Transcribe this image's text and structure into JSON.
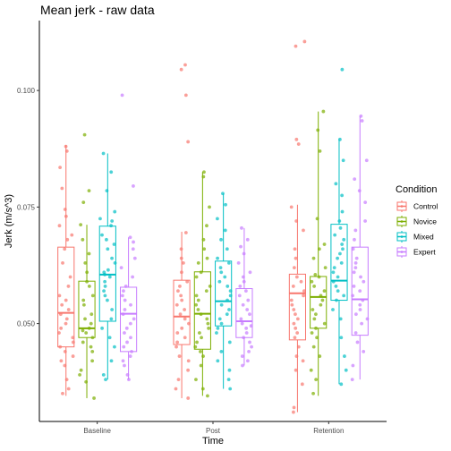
{
  "chart_data": {
    "type": "box",
    "title": "Mean jerk - raw data",
    "xlabel": "Time",
    "ylabel": "Jerk (m/s^3)",
    "categories": [
      "Baseline",
      "Post",
      "Retention"
    ],
    "ylim": [
      0.029,
      0.115
    ],
    "yticks": [
      0.05,
      0.075,
      0.1
    ],
    "ytick_labels": [
      "0.050",
      "0.075",
      "0.100"
    ],
    "legend": {
      "title": "Condition",
      "position": "right"
    },
    "series": [
      {
        "name": "Control",
        "color": "#F8766D",
        "boxes": [
          {
            "lower": 0.0345,
            "q1": 0.045,
            "median": 0.0523,
            "q3": 0.0664,
            "upper": 0.0883,
            "points": [
              0.088,
              0.087,
              0.0835,
              0.079,
              0.0745,
              0.073,
              0.071,
              0.069,
              0.068,
              0.066,
              0.063,
              0.06,
              0.058,
              0.056,
              0.055,
              0.054,
              0.053,
              0.052,
              0.051,
              0.05,
              0.049,
              0.048,
              0.047,
              0.046,
              0.045,
              0.044,
              0.043,
              0.042,
              0.041,
              0.038,
              0.036,
              0.035
            ]
          },
          {
            "lower": 0.034,
            "q1": 0.0455,
            "median": 0.0515,
            "q3": 0.0593,
            "upper": 0.0697,
            "points": [
              0.1055,
              0.1045,
              0.099,
              0.089,
              0.0695,
              0.066,
              0.064,
              0.063,
              0.061,
              0.059,
              0.058,
              0.057,
              0.056,
              0.055,
              0.054,
              0.053,
              0.052,
              0.051,
              0.05,
              0.049,
              0.048,
              0.047,
              0.046,
              0.045,
              0.043,
              0.042,
              0.04,
              0.038,
              0.036,
              0.034
            ]
          },
          {
            "lower": 0.031,
            "q1": 0.0465,
            "median": 0.0565,
            "q3": 0.0606,
            "upper": 0.0755,
            "points": [
              0.1105,
              0.1095,
              0.0895,
              0.0885,
              0.075,
              0.072,
              0.07,
              0.066,
              0.064,
              0.062,
              0.06,
              0.059,
              0.058,
              0.057,
              0.056,
              0.055,
              0.054,
              0.053,
              0.052,
              0.051,
              0.05,
              0.049,
              0.048,
              0.047,
              0.045,
              0.043,
              0.042,
              0.04,
              0.037,
              0.032,
              0.031
            ]
          }
        ]
      },
      {
        "name": "Novice",
        "color": "#7CAE00",
        "boxes": [
          {
            "lower": 0.034,
            "q1": 0.047,
            "median": 0.049,
            "q3": 0.0591,
            "upper": 0.0712,
            "points": [
              0.0905,
              0.0785,
              0.076,
              0.0712,
              0.068,
              0.065,
              0.063,
              0.061,
              0.059,
              0.058,
              0.056,
              0.055,
              0.054,
              0.052,
              0.051,
              0.05,
              0.049,
              0.0485,
              0.048,
              0.047,
              0.046,
              0.045,
              0.044,
              0.042,
              0.04,
              0.039,
              0.0375,
              0.034
            ]
          },
          {
            "lower": 0.0345,
            "q1": 0.0445,
            "median": 0.0521,
            "q3": 0.0611,
            "upper": 0.0825,
            "points": [
              0.0825,
              0.0815,
              0.075,
              0.071,
              0.068,
              0.066,
              0.064,
              0.063,
              0.061,
              0.06,
              0.058,
              0.057,
              0.056,
              0.055,
              0.054,
              0.053,
              0.052,
              0.051,
              0.05,
              0.049,
              0.048,
              0.047,
              0.046,
              0.045,
              0.044,
              0.043,
              0.041,
              0.038,
              0.036,
              0.0345
            ]
          },
          {
            "lower": 0.0345,
            "q1": 0.049,
            "median": 0.0557,
            "q3": 0.0601,
            "upper": 0.0955,
            "points": [
              0.0955,
              0.0915,
              0.087,
              0.0725,
              0.067,
              0.066,
              0.064,
              0.062,
              0.0605,
              0.06,
              0.059,
              0.058,
              0.057,
              0.056,
              0.055,
              0.054,
              0.053,
              0.052,
              0.051,
              0.05,
              0.049,
              0.048,
              0.047,
              0.045,
              0.043,
              0.04,
              0.038,
              0.035
            ]
          }
        ]
      },
      {
        "name": "Mixed",
        "color": "#00BFC4",
        "boxes": [
          {
            "lower": 0.038,
            "q1": 0.0505,
            "median": 0.0605,
            "q3": 0.0709,
            "upper": 0.0865,
            "points": [
              0.0865,
              0.0825,
              0.0785,
              0.074,
              0.0725,
              0.072,
              0.071,
              0.069,
              0.068,
              0.067,
              0.066,
              0.064,
              0.063,
              0.0615,
              0.061,
              0.0605,
              0.06,
              0.059,
              0.058,
              0.057,
              0.056,
              0.055,
              0.053,
              0.051,
              0.049,
              0.047,
              0.045,
              0.042,
              0.039,
              0.038
            ]
          },
          {
            "lower": 0.036,
            "q1": 0.0495,
            "median": 0.0548,
            "q3": 0.0634,
            "upper": 0.0779,
            "points": [
              0.0779,
              0.0755,
              0.0725,
              0.07,
              0.068,
              0.066,
              0.064,
              0.063,
              0.062,
              0.061,
              0.06,
              0.059,
              0.058,
              0.057,
              0.056,
              0.055,
              0.054,
              0.053,
              0.052,
              0.051,
              0.05,
              0.049,
              0.048,
              0.046,
              0.044,
              0.042,
              0.04,
              0.038,
              0.036
            ]
          },
          {
            "lower": 0.037,
            "q1": 0.055,
            "median": 0.0592,
            "q3": 0.0713,
            "upper": 0.0895,
            "points": [
              0.1045,
              0.0895,
              0.085,
              0.08,
              0.0775,
              0.074,
              0.072,
              0.0705,
              0.069,
              0.068,
              0.067,
              0.066,
              0.065,
              0.064,
              0.063,
              0.062,
              0.061,
              0.06,
              0.059,
              0.058,
              0.057,
              0.056,
              0.055,
              0.053,
              0.051,
              0.047,
              0.043,
              0.04,
              0.037
            ]
          }
        ]
      },
      {
        "name": "Expert",
        "color": "#C77CFF",
        "boxes": [
          {
            "lower": 0.038,
            "q1": 0.044,
            "median": 0.0521,
            "q3": 0.0578,
            "upper": 0.0685,
            "points": [
              0.099,
              0.0795,
              0.0685,
              0.0675,
              0.066,
              0.064,
              0.062,
              0.06,
              0.058,
              0.057,
              0.056,
              0.055,
              0.054,
              0.053,
              0.052,
              0.051,
              0.05,
              0.049,
              0.048,
              0.047,
              0.046,
              0.045,
              0.044,
              0.043,
              0.042,
              0.041,
              0.039,
              0.038
            ]
          },
          {
            "lower": 0.041,
            "q1": 0.047,
            "median": 0.0505,
            "q3": 0.0575,
            "upper": 0.0705,
            "points": [
              0.0705,
              0.068,
              0.0665,
              0.065,
              0.063,
              0.061,
              0.06,
              0.059,
              0.058,
              0.057,
              0.056,
              0.055,
              0.054,
              0.053,
              0.052,
              0.051,
              0.05,
              0.0495,
              0.049,
              0.048,
              0.047,
              0.046,
              0.045,
              0.044,
              0.043,
              0.042,
              0.041
            ]
          },
          {
            "lower": 0.038,
            "q1": 0.0475,
            "median": 0.0552,
            "q3": 0.0664,
            "upper": 0.0945,
            "points": [
              0.0945,
              0.0935,
              0.085,
              0.081,
              0.0785,
              0.076,
              0.072,
              0.07,
              0.068,
              0.066,
              0.064,
              0.063,
              0.062,
              0.061,
              0.06,
              0.059,
              0.058,
              0.057,
              0.056,
              0.055,
              0.054,
              0.053,
              0.052,
              0.051,
              0.05,
              0.048,
              0.046,
              0.044,
              0.041,
              0.038
            ]
          }
        ]
      }
    ]
  }
}
